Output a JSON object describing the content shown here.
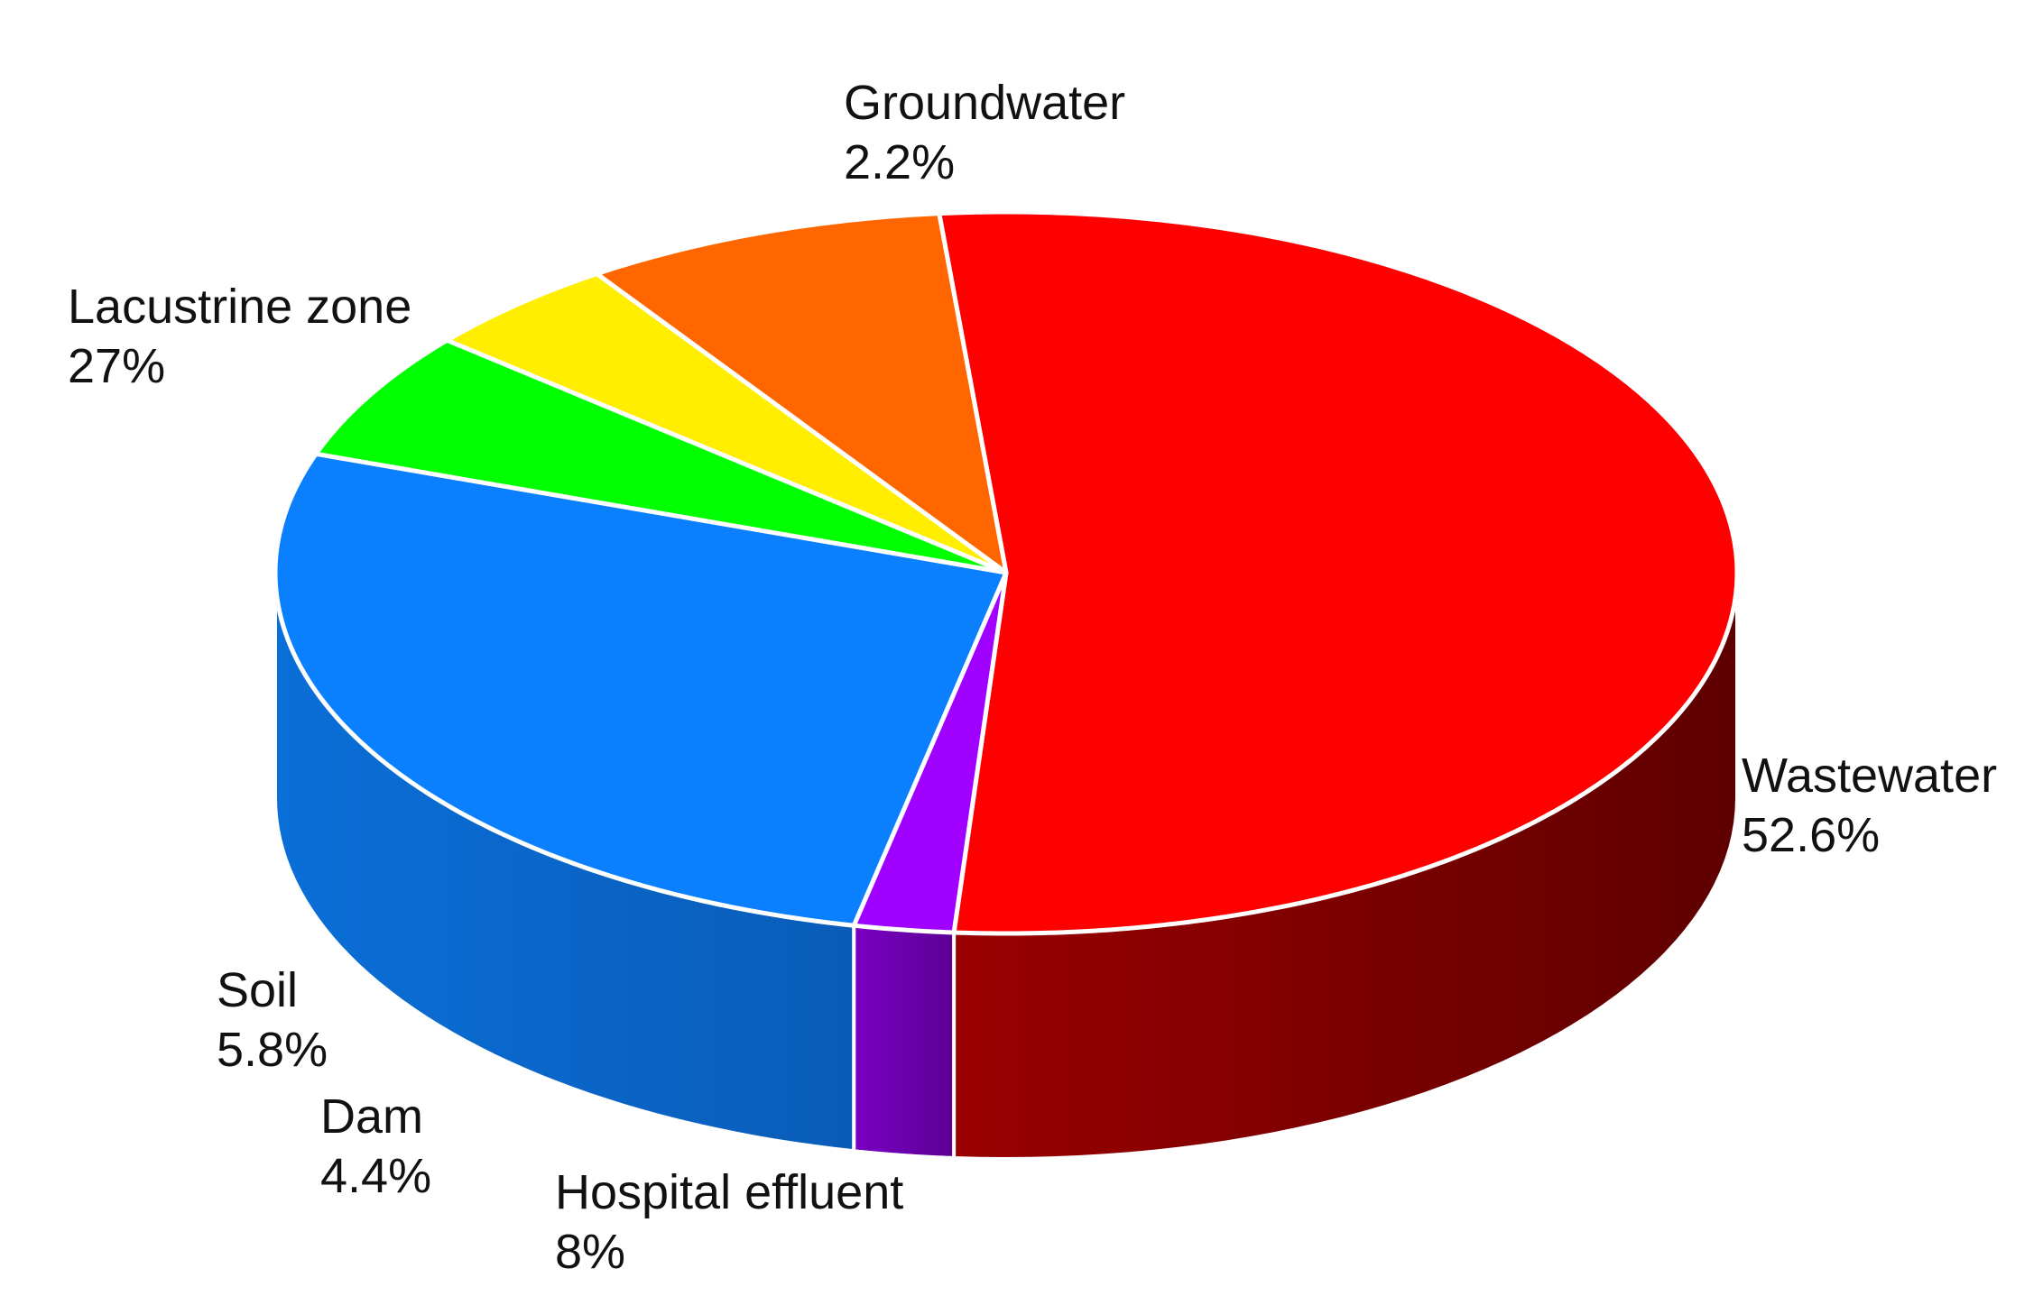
{
  "chart_data": {
    "type": "pie",
    "style": "3d",
    "title": "",
    "slices": [
      {
        "label": "Wastewater",
        "percent_label": "52.6%",
        "value": 52.6,
        "color": "#ff0000",
        "side_color_light": "#9a0000",
        "side_color_dark": "#5e0000"
      },
      {
        "label": "Hospital effluent",
        "percent_label": "8%",
        "value": 8,
        "color": "#ff6600",
        "side_color_light": "#c04c00",
        "side_color_dark": "#9c3c00"
      },
      {
        "label": "Dam",
        "percent_label": "4.4%",
        "value": 4.4,
        "color": "#ffee00",
        "side_color_light": "#d4c400",
        "side_color_dark": "#c2b300"
      },
      {
        "label": "Soil",
        "percent_label": "5.8%",
        "value": 5.8,
        "color": "#00ff00",
        "side_color_light": "#00cc00",
        "side_color_dark": "#00aa00"
      },
      {
        "label": "Lacustrine zone",
        "percent_label": "27%",
        "value": 27,
        "color": "#0a80ff",
        "side_color_light": "#0a6fd8",
        "side_color_dark": "#0a5cb8"
      },
      {
        "label": "Groundwater",
        "percent_label": "2.2%",
        "value": 2.2,
        "color": "#a000ff",
        "side_color_light": "#7a00c4",
        "side_color_dark": "#5c0094"
      }
    ],
    "legend": "none",
    "label_placement": "outside"
  }
}
